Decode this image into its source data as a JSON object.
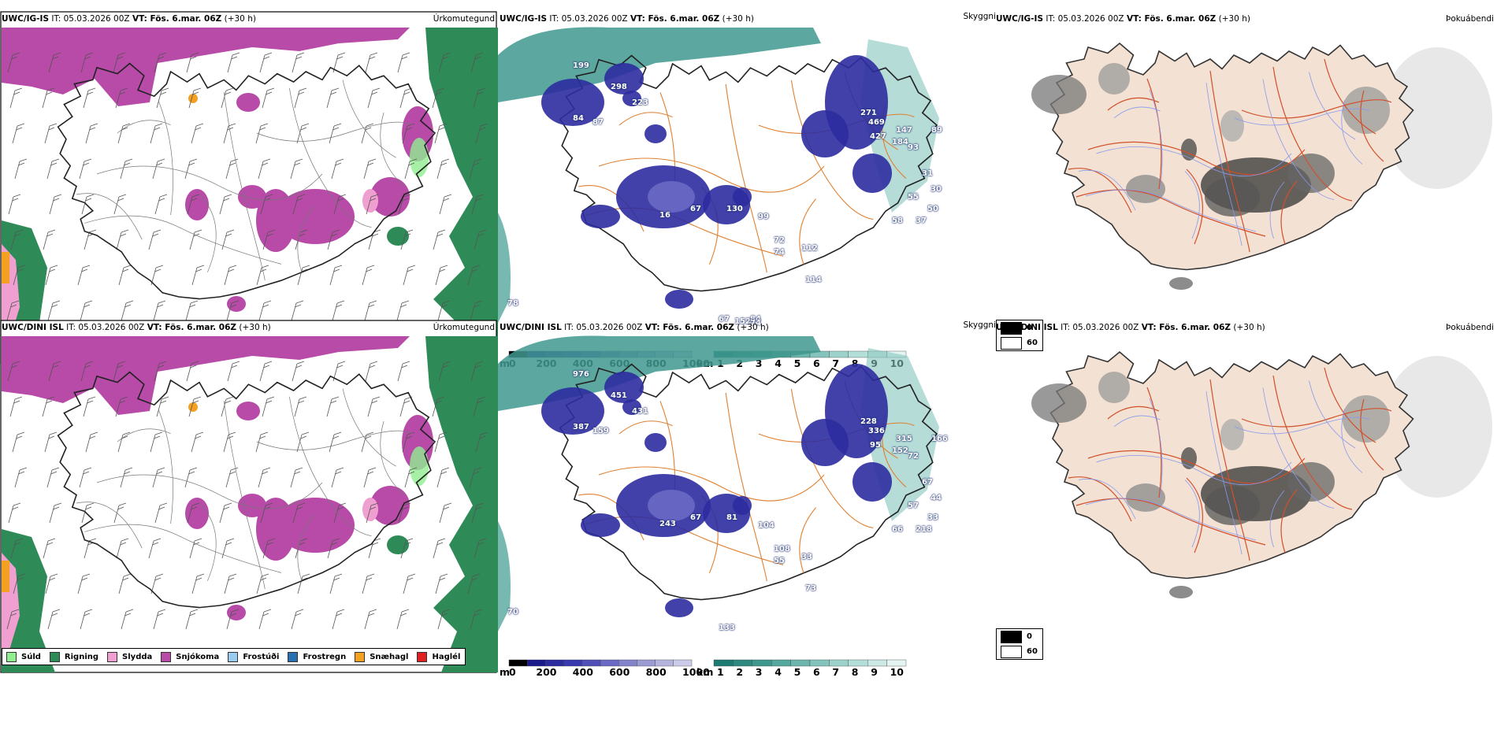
{
  "rows": [
    {
      "model": "UWC/IG-IS",
      "run": "IT: 05.03.2026 00Z",
      "vt_label": "VT:",
      "vt_value": "Fös. 6.mar. 06Z",
      "lead": "(+30 h)",
      "height_numbers": [
        "199",
        "298",
        "223",
        "84",
        "87",
        "271",
        "469",
        "427",
        "147",
        "89",
        "184",
        "93",
        "31",
        "30",
        "50",
        "55",
        "58",
        "37",
        "16",
        "67",
        "130",
        "99",
        "72",
        "112",
        "74",
        "114",
        "78",
        "67",
        "152",
        "84",
        "74"
      ],
      "visibility_numbers": []
    },
    {
      "model": "UWC/DINI ISL",
      "run": "IT: 05.03.2026 00Z",
      "vt_label": "VT:",
      "vt_value": "Fös. 6.mar. 06Z",
      "lead": "(+30 h)",
      "height_numbers": [
        "976",
        "451",
        "431",
        "387",
        "159",
        "228",
        "336",
        "95",
        "315",
        "166",
        "152",
        "72",
        "67",
        "44",
        "33",
        "57",
        "66",
        "218",
        "243",
        "67",
        "81",
        "104",
        "108",
        "33",
        "55",
        "73",
        "70",
        "133"
      ],
      "visibility_numbers": []
    }
  ],
  "panel_titles": {
    "precip_type": "Úrkomutegund",
    "visibility": "Skyggni",
    "sky": "Þokuábendi"
  },
  "precip_legend": [
    {
      "label": "Súld",
      "color": "#90ee90"
    },
    {
      "label": "Rigning",
      "color": "#2e8b57"
    },
    {
      "label": "Slydda",
      "color": "#f0a0d0"
    },
    {
      "label": "Snjókoma",
      "color": "#b84aa8"
    },
    {
      "label": "Frostúði",
      "color": "#99ccee"
    },
    {
      "label": "Frostregn",
      "color": "#2a6fb0"
    },
    {
      "label": "Snæhagl",
      "color": "#f4a020"
    },
    {
      "label": "Haglél",
      "color": "#e02020"
    }
  ],
  "cloud_base_colorbar": {
    "unit": "m",
    "ticks": [
      "0",
      "200",
      "400",
      "600",
      "800",
      "1000"
    ],
    "colors": [
      "#000000",
      "#1a1a8a",
      "#2c2ca0",
      "#3a3ab0",
      "#5050b8",
      "#6a6ac4",
      "#8484cc",
      "#9c9cd4",
      "#b4b4dc",
      "#ccccea"
    ]
  },
  "visibility_colorbar": {
    "unit": "km",
    "ticks": [
      "1",
      "2",
      "3",
      "4",
      "5",
      "6",
      "7",
      "8",
      "9",
      "10"
    ],
    "colors": [
      "#1f7a72",
      "#2e8a80",
      "#3f988e",
      "#55a89e",
      "#6cb6ad",
      "#84c4bc",
      "#9cd2ca",
      "#b4ded8",
      "#cce9e4",
      "#e4f4f2"
    ]
  },
  "fog_legend": [
    {
      "label": "0",
      "color": "#000000"
    },
    {
      "label": "60",
      "color": "#ffffff"
    }
  ]
}
